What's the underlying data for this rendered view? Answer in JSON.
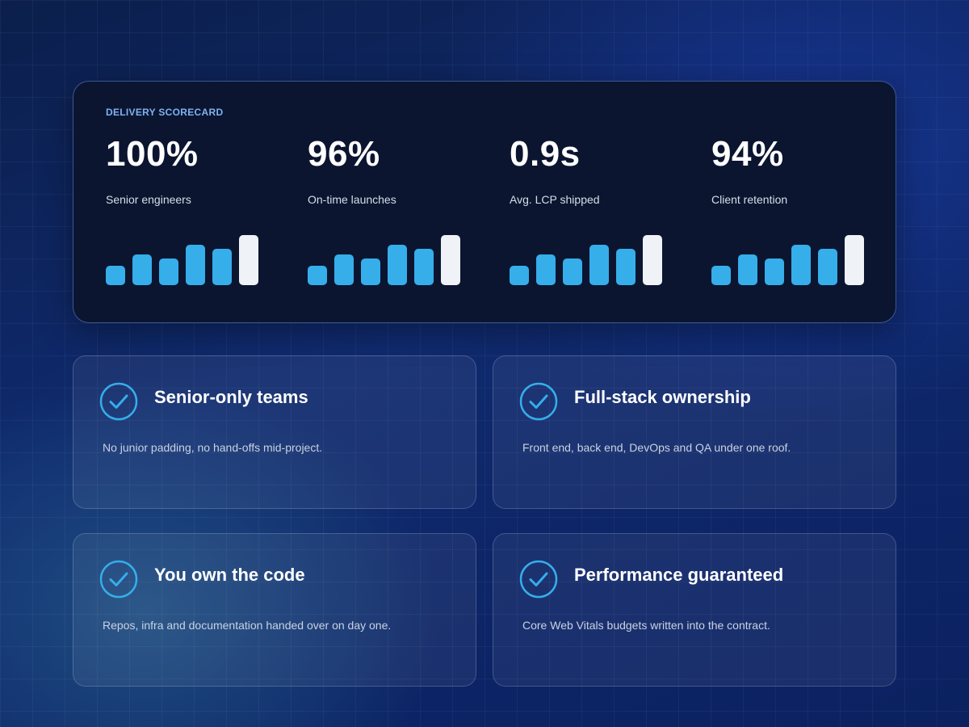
{
  "scorecard": {
    "eyebrow": "DELIVERY SCORECARD",
    "metrics": [
      {
        "value": "100%",
        "label": "Senior engineers"
      },
      {
        "value": "96%",
        "label": "On-time launches"
      },
      {
        "value": "0.9s",
        "label": "Avg. LCP shipped"
      },
      {
        "value": "94%",
        "label": "Client retention"
      }
    ],
    "bar_levels": [
      0.37,
      0.6,
      0.52,
      0.78,
      0.71,
      0.97
    ],
    "colors": {
      "bar": "#35aeea",
      "bar_highlight": "#eff2f6"
    }
  },
  "features": [
    {
      "icon": "check-circle-icon",
      "title": "Senior-only teams",
      "description": "No junior padding, no hand-offs mid-project."
    },
    {
      "icon": "check-circle-icon",
      "title": "Full-stack ownership",
      "description": "Front end, back end, DevOps and QA under one roof."
    },
    {
      "icon": "check-circle-icon",
      "title": "You own the code",
      "description": "Repos, infra and documentation handed over on day one."
    },
    {
      "icon": "check-circle-icon",
      "title": "Performance guaranteed",
      "description": "Core Web Vitals budgets written into the contract."
    }
  ],
  "colors": {
    "accent": "#35aeea",
    "panel": "#0b1530"
  }
}
